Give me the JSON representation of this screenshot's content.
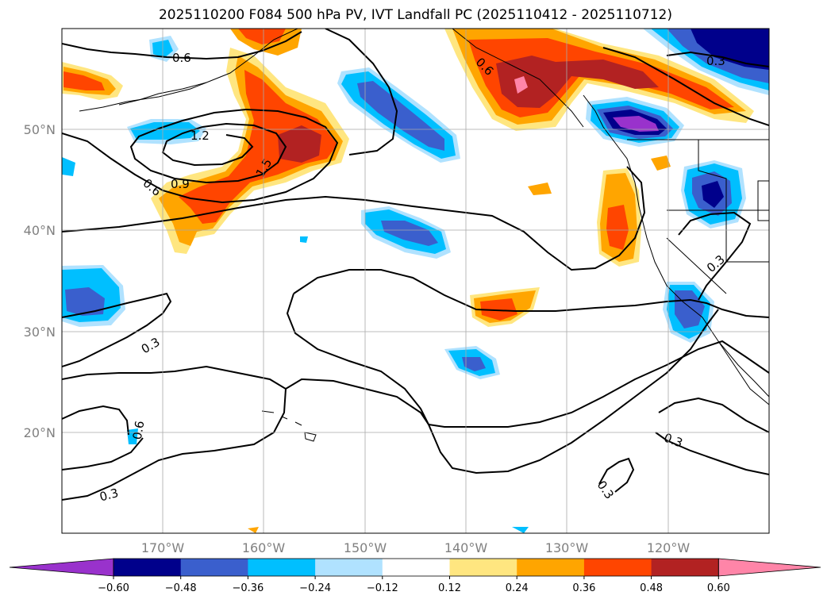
{
  "title": "2025110200 F084 500 hPa PV, IVT Landfall PC (2025110412 - 2025110712)",
  "lat_labels": [
    "50°N",
    "40°N",
    "30°N",
    "20°N"
  ],
  "lon_labels": [
    "170°W",
    "160°W",
    "150°W",
    "140°W",
    "130°W",
    "120°W"
  ],
  "colorbar": {
    "ticks": [
      "−0.60",
      "−0.48",
      "−0.36",
      "−0.24",
      "−0.12",
      "0.12",
      "0.24",
      "0.36",
      "0.48",
      "0.60"
    ],
    "colors": [
      "#9932cc",
      "#00008b",
      "#3a5fcd",
      "#00bfff",
      "#b0e2ff",
      "#ffffff",
      "#ffe680",
      "#ffa500",
      "#ff4500",
      "#b22222",
      "#ff85a8"
    ]
  },
  "contour_labels": [
    "0.6",
    "1.2",
    "1.5",
    "0.9",
    "0.6",
    "0.6",
    "0.3",
    "0.3",
    "0.3",
    "0.3",
    "0.6",
    "0.3",
    "0.3"
  ],
  "chart_data": {
    "type": "map",
    "title": "2025110200 F084 500 hPa PV, IVT Landfall PC (2025110412 - 2025110712)",
    "xlim": [
      -180,
      -110
    ],
    "ylim": [
      10,
      60
    ],
    "filled_field_levels": [
      -0.6,
      -0.48,
      -0.36,
      -0.24,
      -0.12,
      0.12,
      0.24,
      0.36,
      0.48,
      0.6
    ],
    "contour_levels": [
      0.3,
      0.6,
      0.9,
      1.2,
      1.5
    ],
    "grid": true
  }
}
